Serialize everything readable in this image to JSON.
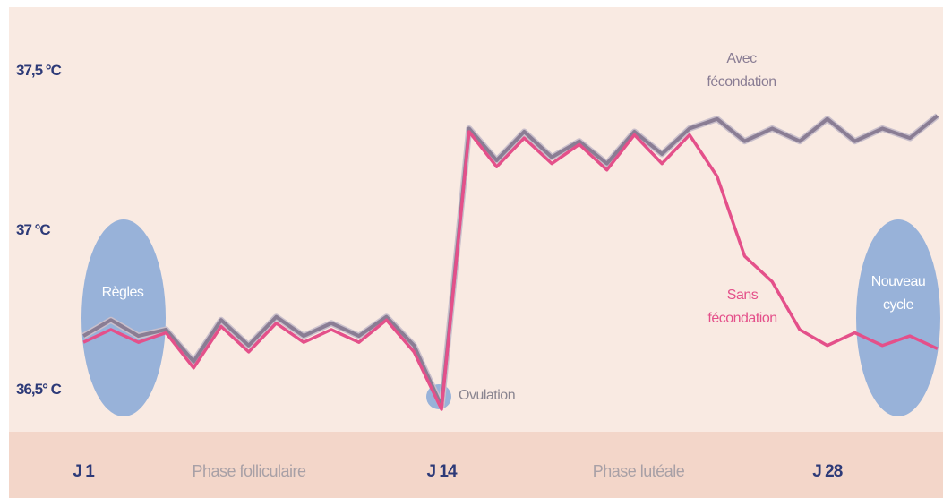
{
  "chart_data": {
    "type": "line",
    "x": [
      1,
      2,
      3,
      4,
      5,
      6,
      7,
      8,
      9,
      10,
      11,
      12,
      13,
      14,
      15,
      16,
      17,
      18,
      19,
      20,
      21,
      22,
      23,
      24,
      25,
      26,
      27,
      28,
      29,
      30,
      31,
      32
    ],
    "series": [
      {
        "color": "#8a7d94",
        "values": [
          36.67,
          36.72,
          36.67,
          36.69,
          36.59,
          36.72,
          36.64,
          36.73,
          36.67,
          36.71,
          36.67,
          36.73,
          36.64,
          36.45,
          37.32,
          37.22,
          37.31,
          37.23,
          37.28,
          37.21,
          37.31,
          37.24,
          37.32,
          37.35,
          37.28,
          37.32,
          37.28,
          37.35,
          37.28,
          37.32,
          37.29,
          37.36
        ]
      },
      {
        "color": "#e4508a",
        "values": [
          36.65,
          36.69,
          36.65,
          36.68,
          36.57,
          36.7,
          36.62,
          36.71,
          36.65,
          36.69,
          36.65,
          36.72,
          36.62,
          36.44,
          37.31,
          37.2,
          37.29,
          37.21,
          37.27,
          37.19,
          37.3,
          37.21,
          37.3,
          37.17,
          36.92,
          36.84,
          36.69,
          36.64,
          36.68,
          36.64,
          36.67,
          36.63
        ]
      }
    ],
    "xlim": [
      -1.7,
      32.2
    ],
    "ylim": [
      36.37,
      37.7
    ],
    "xticks": [
      {
        "value": 1,
        "label": "J 1"
      },
      {
        "value": 14,
        "label": "J 14"
      },
      {
        "value": 28,
        "label": "J 28"
      }
    ],
    "yticks": [
      {
        "value": 36.5,
        "label": "36,5° C"
      },
      {
        "value": 37,
        "label": "37 °C"
      },
      {
        "value": 37.5,
        "label": "37,5 °C"
      }
    ],
    "annotations": [
      {
        "lines": [
          "Règles"
        ],
        "color": "#ffffff"
      },
      {
        "lines": [
          "Ovulation"
        ],
        "color": "#8a8590"
      },
      {
        "lines": [
          "Avec",
          "fécondation"
        ],
        "color": "#8a7d94"
      },
      {
        "lines": [
          "Sans",
          "fécondation"
        ],
        "color": "#e4508a"
      },
      {
        "lines": [
          "Nouveau",
          "cycle"
        ],
        "color": "#ffffff"
      }
    ],
    "phases": [
      "Phase folliculaire",
      "Phase lutéale"
    ]
  }
}
